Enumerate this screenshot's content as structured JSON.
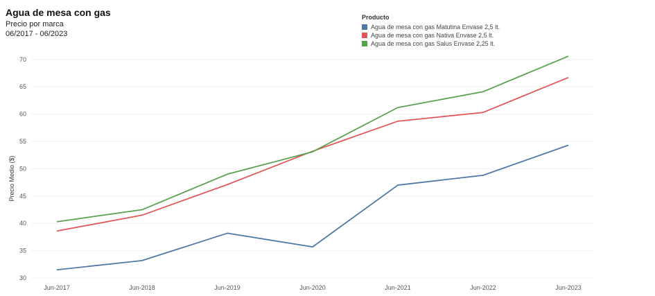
{
  "header": {
    "title": "Agua de mesa con gas",
    "subtitle": "Precio por marca",
    "period": "06/2017 - 06/2023"
  },
  "legend": {
    "title": "Producto"
  },
  "chart_data": {
    "type": "line",
    "categories": [
      "Jun-2017",
      "Jun-2018",
      "Jun-2019",
      "Jun-2020",
      "Jun-2021",
      "Jun-2022",
      "Jun-2023"
    ],
    "series": [
      {
        "name": "Agua de mesa con gas Matutina Envase 2,5 lt.",
        "color": "#4e79a7",
        "values": [
          31.5,
          33.2,
          38.2,
          35.7,
          47.0,
          48.8,
          54.3
        ]
      },
      {
        "name": "Agua de mesa con gas Nativa Envase 2,5 lt.",
        "color": "#e15759",
        "values": [
          38.6,
          41.5,
          47.1,
          53.2,
          58.7,
          60.3,
          66.7
        ]
      },
      {
        "name": "Agua de mesa con gas Salus Envase 2,25 lt.",
        "color": "#59a14f",
        "values": [
          40.3,
          42.5,
          49.0,
          53.1,
          61.2,
          64.1,
          70.6
        ]
      }
    ],
    "ylabel": "Precio Medio ($)",
    "yticks": [
      30,
      35,
      40,
      45,
      50,
      55,
      60,
      65,
      70
    ],
    "ylim": [
      29.5,
      72
    ],
    "grid": true,
    "legend_position": "top-right"
  }
}
